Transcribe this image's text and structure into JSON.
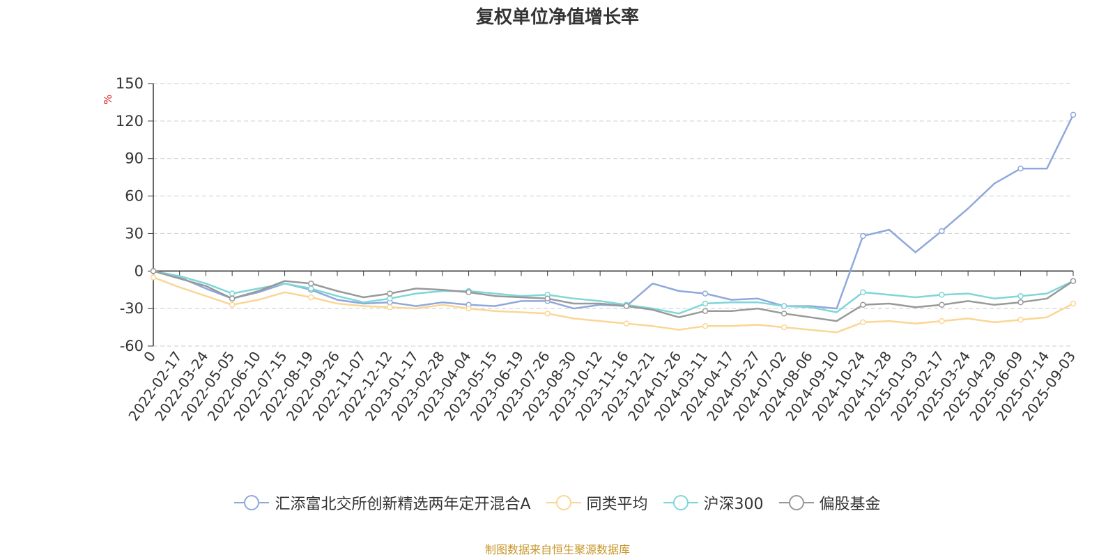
{
  "title": "复权单位净值增长率",
  "source": "制图数据来自恒生聚源数据库",
  "chart_data": {
    "type": "line",
    "title": "复权单位净值增长率",
    "ylabel": "%",
    "ylim": [
      -60,
      150
    ],
    "yticks": [
      150,
      120,
      90,
      60,
      30,
      0,
      -30,
      -60
    ],
    "grid": true,
    "legend_position": "bottom",
    "categories": [
      "0",
      "2022-02-17",
      "2022-03-24",
      "2022-05-05",
      "2022-06-10",
      "2022-07-15",
      "2022-08-19",
      "2022-09-26",
      "2022-11-07",
      "2022-12-12",
      "2023-01-17",
      "2023-02-28",
      "2023-04-04",
      "2023-05-15",
      "2023-06-19",
      "2023-07-26",
      "2023-08-30",
      "2023-10-12",
      "2023-11-16",
      "2023-12-21",
      "2024-01-26",
      "2024-03-11",
      "2024-04-17",
      "2024-05-27",
      "2024-07-02",
      "2024-08-06",
      "2024-09-10",
      "2024-10-24",
      "2024-11-28",
      "2025-01-03",
      "2025-02-17",
      "2025-03-24",
      "2025-04-29",
      "2025-06-09",
      "2025-07-14",
      "2025-09-03"
    ],
    "series": [
      {
        "name": "汇添富北交所创新精选两年定开混合A",
        "color": "#8fa8dc",
        "values": [
          0,
          -5,
          -14,
          -22,
          -17,
          -10,
          -15,
          -23,
          -26,
          -25,
          -28,
          -25,
          -27,
          -28,
          -24,
          -24,
          -30,
          -27,
          -28,
          -10,
          -16,
          -18,
          -23,
          -22,
          -28,
          -28,
          -30,
          28,
          33,
          15,
          32,
          50,
          70,
          82,
          82,
          125
        ]
      },
      {
        "name": "同类平均",
        "color": "#fad694",
        "values": [
          -5,
          -13,
          -20,
          -27,
          -23,
          -17,
          -21,
          -26,
          -28,
          -29,
          -30,
          -27,
          -30,
          -32,
          -33,
          -34,
          -38,
          -40,
          -42,
          -44,
          -47,
          -44,
          -44,
          -43,
          -45,
          -47,
          -49,
          -41,
          -40,
          -42,
          -40,
          -38,
          -41,
          -39,
          -37,
          -26
        ]
      },
      {
        "name": "沪深300",
        "color": "#7fd6d8",
        "values": [
          0,
          -4,
          -10,
          -18,
          -14,
          -10,
          -14,
          -20,
          -25,
          -22,
          -18,
          -16,
          -16,
          -18,
          -20,
          -19,
          -22,
          -24,
          -27,
          -30,
          -34,
          -26,
          -25,
          -25,
          -28,
          -29,
          -33,
          -17,
          -19,
          -21,
          -19,
          -18,
          -22,
          -20,
          -18,
          -8
        ]
      },
      {
        "name": "偏股基金",
        "color": "#999999",
        "values": [
          0,
          -6,
          -12,
          -22,
          -16,
          -8,
          -10,
          -16,
          -21,
          -18,
          -14,
          -15,
          -17,
          -20,
          -21,
          -22,
          -26,
          -26,
          -28,
          -31,
          -37,
          -32,
          -32,
          -30,
          -34,
          -37,
          -40,
          -27,
          -26,
          -29,
          -27,
          -24,
          -27,
          -25,
          -22,
          -8
        ]
      }
    ]
  },
  "legend_marker_icon": "circle-line-marker"
}
